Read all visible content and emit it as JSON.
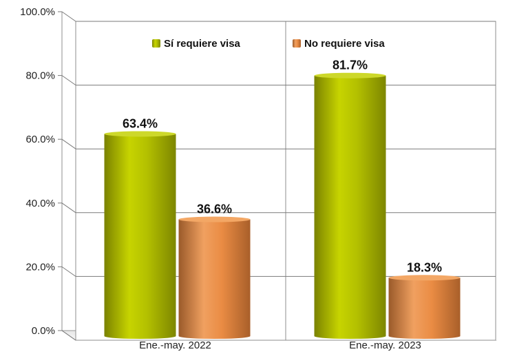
{
  "chart_data": {
    "type": "bar",
    "categories": [
      "Ene.-may. 2022",
      "Ene.-may. 2023"
    ],
    "series": [
      {
        "name": "Sí requiere visa",
        "values": [
          63.4,
          81.7
        ],
        "labels": [
          "63.4%",
          "81.7%"
        ],
        "color": "#b5c200"
      },
      {
        "name": "No requiere visa",
        "values": [
          36.6,
          18.3
        ],
        "labels": [
          "36.6%",
          "18.3%"
        ],
        "color": "#ee8f45"
      }
    ],
    "ylim": [
      0,
      100
    ],
    "yticks": [
      0,
      20,
      40,
      60,
      80,
      100
    ],
    "ytick_labels": [
      "0.0%",
      "20.0%",
      "40.0%",
      "60.0%",
      "80.0%",
      "100.0%"
    ],
    "grid": true,
    "legend_position": "top"
  }
}
